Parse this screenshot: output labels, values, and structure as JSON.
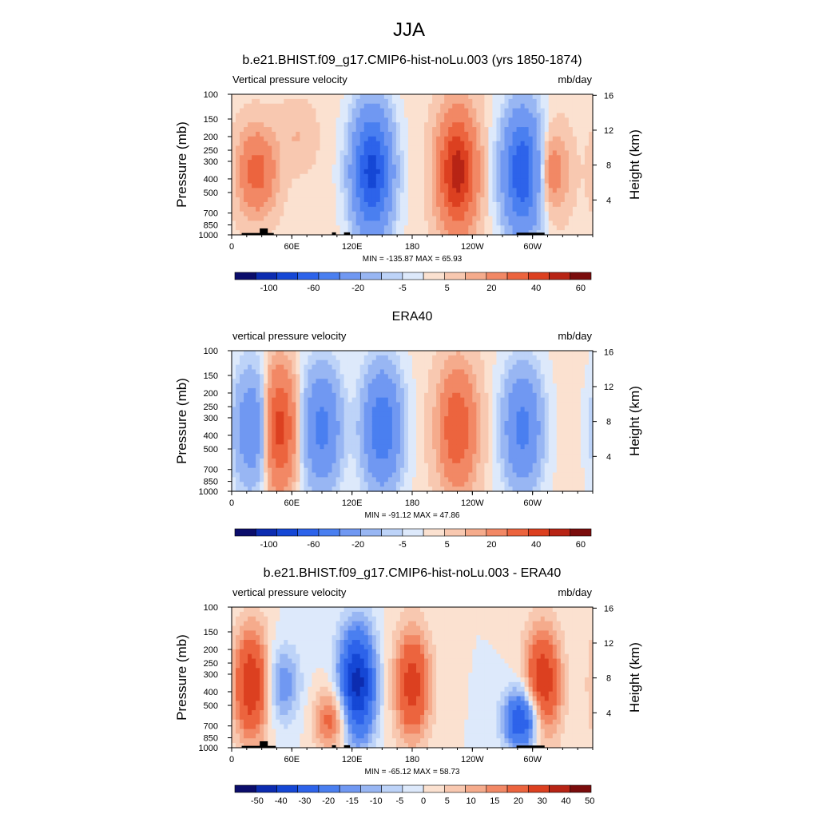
{
  "title": "JJA",
  "chart_data": [
    {
      "type": "heatmap",
      "title": "b.e21.BHIST.f09_g17.CMIP6-hist-noLu.003 (yrs 1850-1874)",
      "left_label": "Vertical pressure velocity",
      "right_label": "mb/day",
      "ylabel": "Pressure (mb)",
      "ylabel_right": "Height (km)",
      "xticks": [
        "0",
        "60E",
        "120E",
        "180",
        "120W",
        "60W"
      ],
      "yticks": [
        "100",
        "150",
        "200",
        "250",
        "300",
        "400",
        "500",
        "700",
        "850",
        "1000"
      ],
      "yticks_right": [
        "16",
        "12",
        "8",
        "4"
      ],
      "minmax": "MIN = -135.87  MAX =  65.93",
      "colorbar_labels": [
        "-100",
        "-60",
        "-20",
        "-5",
        "5",
        "20",
        "40",
        "60"
      ],
      "colorbar_levels": [
        -120,
        -100,
        -80,
        -60,
        -40,
        -20,
        -10,
        -5,
        -1,
        1,
        5,
        10,
        20,
        30,
        40,
        50,
        60
      ],
      "min": -135.87,
      "max": 65.93,
      "features": [
        {
          "lon": 25,
          "value": 25,
          "extent": "mid"
        },
        {
          "lon": 65,
          "value": 5,
          "extent": "upper"
        },
        {
          "lon": 140,
          "value": -90,
          "extent": "deep"
        },
        {
          "lon": 225,
          "value": 45,
          "extent": "deep"
        },
        {
          "lon": 290,
          "value": -80,
          "extent": "deep"
        },
        {
          "lon": 315,
          "value": 20,
          "extent": "mid"
        }
      ],
      "orography": [
        {
          "lon_start": 10,
          "lon_end": 42,
          "pressure": 970
        },
        {
          "lon_start": 28,
          "lon_end": 36,
          "pressure": 900
        },
        {
          "lon_start": 100,
          "lon_end": 104,
          "pressure": 960
        },
        {
          "lon_start": 112,
          "lon_end": 118,
          "pressure": 960
        },
        {
          "lon_start": 284,
          "lon_end": 312,
          "pressure": 965
        }
      ]
    },
    {
      "type": "heatmap",
      "title": "ERA40",
      "left_label": "vertical pressure velocity",
      "right_label": "mb/day",
      "ylabel": "Pressure (mb)",
      "ylabel_right": "Height (km)",
      "xticks": [
        "0",
        "60E",
        "120E",
        "180",
        "120W",
        "60W"
      ],
      "yticks": [
        "100",
        "150",
        "200",
        "250",
        "300",
        "400",
        "500",
        "700",
        "850",
        "1000"
      ],
      "yticks_right": [
        "16",
        "12",
        "8",
        "4"
      ],
      "minmax": "MIN = -91.12  MAX =  47.86",
      "colorbar_labels": [
        "-100",
        "-60",
        "-20",
        "-5",
        "5",
        "20",
        "40",
        "60"
      ],
      "colorbar_levels": [
        -120,
        -100,
        -80,
        -60,
        -40,
        -20,
        -10,
        -5,
        -1,
        1,
        5,
        10,
        20,
        30,
        40,
        50,
        60
      ],
      "min": -91.12,
      "max": 47.86,
      "features": [
        {
          "lon": 22,
          "value": -40,
          "extent": "deep"
        },
        {
          "lon": 45,
          "value": 40,
          "extent": "deep"
        },
        {
          "lon": 90,
          "value": -45,
          "extent": "deep"
        },
        {
          "lon": 150,
          "value": -55,
          "extent": "deep"
        },
        {
          "lon": 225,
          "value": 30,
          "extent": "deep"
        },
        {
          "lon": 290,
          "value": -45,
          "extent": "deep"
        }
      ],
      "orography": []
    },
    {
      "type": "heatmap",
      "title": "b.e21.BHIST.f09_g17.CMIP6-hist-noLu.003 - ERA40",
      "left_label": "vertical pressure velocity",
      "right_label": "mb/day",
      "ylabel": "Pressure (mb)",
      "ylabel_right": "Height (km)",
      "xticks": [
        "0",
        "60E",
        "120E",
        "180",
        "120W",
        "60W"
      ],
      "yticks": [
        "100",
        "150",
        "200",
        "250",
        "300",
        "400",
        "500",
        "700",
        "850",
        "1000"
      ],
      "yticks_right": [
        "16",
        "12",
        "8",
        "4"
      ],
      "minmax": "MIN = -65.12  MAX =  58.73",
      "colorbar_labels": [
        "-50",
        "-40",
        "-30",
        "-20",
        "-15",
        "-10",
        "-5",
        "0",
        "5",
        "10",
        "15",
        "20",
        "30",
        "40",
        "50"
      ],
      "colorbar_levels": [
        -60,
        -50,
        -40,
        -30,
        -20,
        -15,
        -10,
        -5,
        0,
        5,
        10,
        15,
        20,
        30,
        40,
        50,
        60
      ],
      "min": -65.12,
      "max": 58.73,
      "features": [
        {
          "lon": 20,
          "value": 40,
          "extent": "deep"
        },
        {
          "lon": 50,
          "value": -20,
          "extent": "mid"
        },
        {
          "lon": 100,
          "value": 25,
          "extent": "lower"
        },
        {
          "lon": 125,
          "value": -55,
          "extent": "deep"
        },
        {
          "lon": 180,
          "value": 35,
          "extent": "deep"
        },
        {
          "lon": 290,
          "value": -45,
          "extent": "lower"
        },
        {
          "lon": 310,
          "value": 40,
          "extent": "deep"
        }
      ],
      "orography": [
        {
          "lon_start": 10,
          "lon_end": 44,
          "pressure": 970
        },
        {
          "lon_start": 28,
          "lon_end": 36,
          "pressure": 900
        },
        {
          "lon_start": 100,
          "lon_end": 104,
          "pressure": 960
        },
        {
          "lon_start": 112,
          "lon_end": 118,
          "pressure": 960
        },
        {
          "lon_start": 284,
          "lon_end": 312,
          "pressure": 965
        }
      ]
    }
  ],
  "colorbar_colors": [
    "#0b0d6b",
    "#0c2cb0",
    "#1547d5",
    "#2d63ea",
    "#4a7ff0",
    "#7098f2",
    "#98b6f3",
    "#bdd3f8",
    "#dde9fb",
    "#fbe1d0",
    "#f8c8b0",
    "#f5ab8c",
    "#f28865",
    "#ec643e",
    "#dc4020",
    "#b72415",
    "#7a0c0c"
  ]
}
